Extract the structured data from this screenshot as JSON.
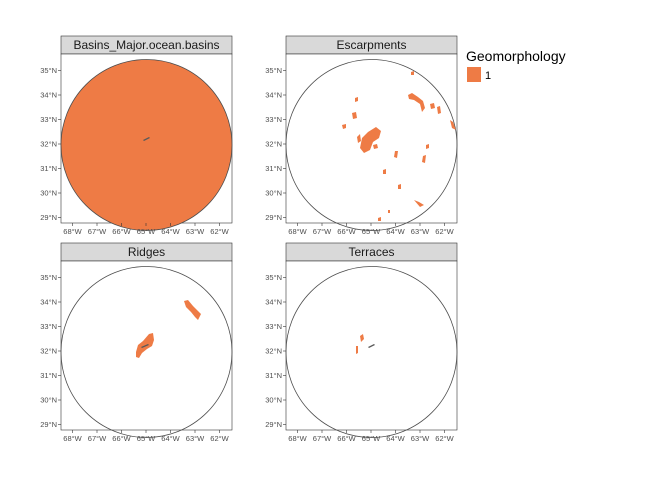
{
  "legend": {
    "title": "Geomorphology",
    "items": [
      {
        "label": "1",
        "color": "#ee7b45"
      }
    ]
  },
  "colors": {
    "fill": "#ee7b45",
    "strip_bg": "#d9d9d9",
    "circle": "#4d4d4d",
    "marker": "#595959"
  },
  "axes": {
    "x_ticks": [
      "68°W",
      "67°W",
      "66°W",
      "65°W",
      "64°W",
      "63°W",
      "62°W"
    ],
    "y_ticks": [
      "29°N",
      "30°N",
      "31°N",
      "32°N",
      "33°N",
      "34°N",
      "35°N"
    ]
  },
  "chart_data": {
    "type": "map",
    "facets": [
      {
        "title": "Basins_Major.ocean.basins",
        "extent": "full-circle",
        "features": [
          "basin"
        ]
      },
      {
        "title": "Escarpments",
        "extent": "partial",
        "features": [
          "scattered escarpment fragments"
        ]
      },
      {
        "title": "Ridges",
        "extent": "partial",
        "features": [
          "central ridge",
          "northeast ridge"
        ]
      },
      {
        "title": "Terraces",
        "extent": "partial",
        "features": [
          "small terrace fragments"
        ]
      }
    ]
  }
}
